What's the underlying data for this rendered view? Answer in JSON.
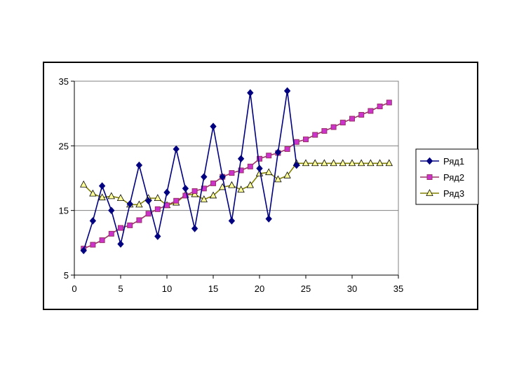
{
  "chart_data": {
    "type": "line",
    "title": "",
    "xlabel": "",
    "ylabel": "",
    "xlim": [
      0,
      35
    ],
    "ylim": [
      5,
      35
    ],
    "x_ticks": [
      0,
      5,
      10,
      15,
      20,
      25,
      30,
      35
    ],
    "y_ticks": [
      5,
      15,
      25,
      35
    ],
    "grid": "horizontal",
    "legend_position": "right",
    "series": [
      {
        "name": "Ряд1",
        "color": "#000080",
        "marker": "diamond",
        "x": [
          1,
          2,
          3,
          4,
          5,
          6,
          7,
          8,
          9,
          10,
          11,
          12,
          13,
          14,
          15,
          16,
          17,
          18,
          19,
          20,
          21,
          22,
          23,
          24
        ],
        "y": [
          8.8,
          13.4,
          18.8,
          15.0,
          9.8,
          16.0,
          22.0,
          16.5,
          11.0,
          17.8,
          24.5,
          18.4,
          12.2,
          20.2,
          28.0,
          20.2,
          13.4,
          23.0,
          33.2,
          21.5,
          13.7,
          24.0,
          33.5,
          22.0
        ]
      },
      {
        "name": "Ряд2",
        "color": "#993366",
        "marker": "square",
        "x": [
          1,
          2,
          3,
          4,
          5,
          6,
          7,
          8,
          9,
          10,
          11,
          12,
          13,
          14,
          15,
          16,
          17,
          18,
          19,
          20,
          21,
          22,
          23,
          24,
          25,
          26,
          27,
          28,
          29,
          30,
          31,
          32,
          33,
          34
        ],
        "y": [
          9.1,
          9.7,
          10.4,
          11.4,
          12.3,
          12.7,
          13.5,
          14.5,
          15.2,
          15.8,
          16.5,
          17.3,
          18.0,
          18.4,
          19.2,
          20.2,
          20.8,
          21.2,
          21.8,
          23.0,
          23.5,
          23.9,
          24.5,
          25.6,
          26.0,
          26.7,
          27.3,
          27.9,
          28.6,
          29.2,
          29.8,
          30.4,
          31.1,
          31.7
        ]
      },
      {
        "name": "Ряд3",
        "color": "#808000",
        "fill": "#ffff99",
        "marker": "triangle",
        "x": [
          1,
          2,
          3,
          4,
          5,
          6,
          7,
          8,
          9,
          10,
          11,
          12,
          13,
          14,
          15,
          16,
          17,
          18,
          19,
          20,
          21,
          22,
          23,
          24,
          25,
          26,
          27,
          28,
          29,
          30,
          31,
          32,
          33,
          34
        ],
        "y": [
          19.0,
          17.6,
          17.0,
          17.2,
          16.9,
          15.9,
          15.9,
          16.9,
          16.9,
          15.8,
          16.2,
          17.4,
          17.5,
          16.7,
          17.3,
          18.6,
          18.9,
          18.2,
          18.9,
          20.7,
          20.9,
          19.8,
          20.4,
          22.3,
          22.3,
          22.3,
          22.3,
          22.3,
          22.3,
          22.3,
          22.3,
          22.3,
          22.3,
          22.3
        ]
      }
    ]
  }
}
